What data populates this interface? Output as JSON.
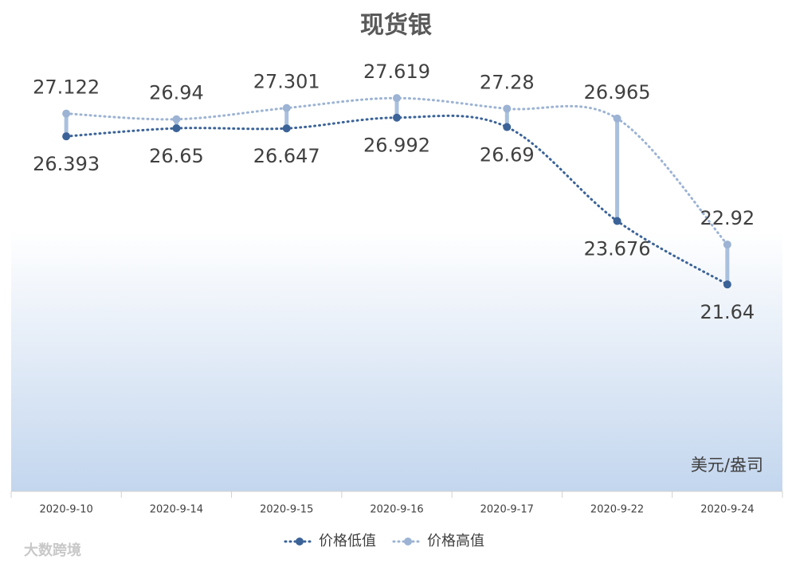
{
  "chart_data": {
    "type": "line",
    "title": "现货银",
    "categories": [
      "2020-9-10",
      "2020-9-14",
      "2020-9-15",
      "2020-9-16",
      "2020-9-17",
      "2020-9-22",
      "2020-9-24"
    ],
    "series": [
      {
        "name": "价格低值",
        "color": "#3b6398",
        "values": [
          26.393,
          26.65,
          26.647,
          26.992,
          26.69,
          23.676,
          21.64
        ]
      },
      {
        "name": "价格高值",
        "color": "#9cb3d4",
        "values": [
          27.122,
          26.94,
          27.301,
          27.619,
          27.28,
          26.965,
          22.92
        ]
      }
    ],
    "ylim": [
      15,
      30
    ],
    "high_low_lines": true,
    "unit_label": "美元/盎司",
    "watermark": "大数跨境"
  }
}
